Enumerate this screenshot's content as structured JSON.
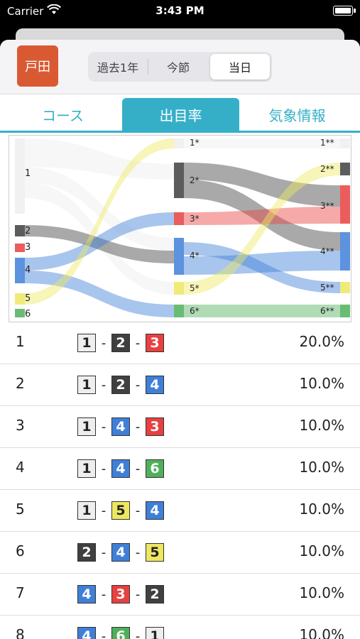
{
  "status": {
    "carrier": "Carrier",
    "time": "3:43 PM"
  },
  "header": {
    "place": "戸田",
    "segments": [
      "過去1年",
      "今節",
      "当日"
    ],
    "selected_segment": 2
  },
  "tabs": {
    "items": [
      "コース",
      "出目率",
      "気象情報"
    ],
    "active": 1
  },
  "sankey": {
    "left_labels": [
      "1",
      "2",
      "3",
      "4",
      "5",
      "6"
    ],
    "mid_labels": [
      "1*",
      "2*",
      "3*",
      "4*",
      "5*",
      "6*"
    ],
    "right_labels": [
      "1**",
      "2**",
      "3**",
      "4**",
      "5**",
      "6**"
    ]
  },
  "results": [
    {
      "rank": "1",
      "combo": [
        "1",
        "2",
        "3"
      ],
      "pct": "20.0%"
    },
    {
      "rank": "2",
      "combo": [
        "1",
        "2",
        "4"
      ],
      "pct": "10.0%"
    },
    {
      "rank": "3",
      "combo": [
        "1",
        "4",
        "3"
      ],
      "pct": "10.0%"
    },
    {
      "rank": "4",
      "combo": [
        "1",
        "4",
        "6"
      ],
      "pct": "10.0%"
    },
    {
      "rank": "5",
      "combo": [
        "1",
        "5",
        "4"
      ],
      "pct": "10.0%"
    },
    {
      "rank": "6",
      "combo": [
        "2",
        "4",
        "5"
      ],
      "pct": "10.0%"
    },
    {
      "rank": "7",
      "combo": [
        "4",
        "3",
        "2"
      ],
      "pct": "10.0%"
    },
    {
      "rank": "8",
      "combo": [
        "4",
        "6",
        "1"
      ],
      "pct": "10.0%"
    }
  ],
  "colors": {
    "1": "#eeeeee",
    "2": "#404040",
    "3": "#e84040",
    "4": "#3f7fd8",
    "5": "#ede860",
    "6": "#4fb05a",
    "accent": "#35afc8",
    "place_badge": "#d95a32"
  }
}
